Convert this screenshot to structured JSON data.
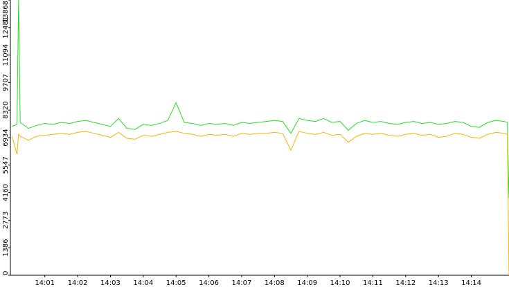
{
  "chart_data": {
    "type": "line",
    "x": [
      0,
      0.15,
      0.2,
      0.25,
      0.5,
      0.75,
      1,
      1.25,
      1.5,
      1.75,
      2,
      2.25,
      2.5,
      2.75,
      3,
      3.25,
      3.5,
      3.75,
      4,
      4.25,
      4.5,
      4.75,
      5,
      5.25,
      5.5,
      5.75,
      6,
      6.25,
      6.5,
      6.75,
      7,
      7.25,
      7.5,
      7.75,
      8,
      8.25,
      8.5,
      8.75,
      9,
      9.25,
      9.5,
      9.75,
      10,
      10.25,
      10.5,
      10.75,
      11,
      11.25,
      11.5,
      11.75,
      12,
      12.25,
      12.5,
      12.75,
      13,
      13.25,
      13.5,
      13.75,
      14,
      14.25,
      14.5,
      14.75,
      15,
      15.1,
      15.15
    ],
    "series": [
      {
        "color": "#22dd22",
        "values": [
          7500,
          7600,
          13868,
          7700,
          7400,
          7550,
          7650,
          7600,
          7700,
          7650,
          7750,
          7800,
          7700,
          7600,
          7500,
          7900,
          7400,
          7350,
          7600,
          7550,
          7650,
          7800,
          8700,
          7700,
          7650,
          7550,
          7650,
          7600,
          7650,
          7550,
          7700,
          7650,
          7700,
          7750,
          7800,
          7750,
          7150,
          7900,
          7800,
          7750,
          7900,
          7700,
          7750,
          7300,
          7650,
          7800,
          7700,
          7750,
          7650,
          7600,
          7700,
          7750,
          7650,
          7700,
          7600,
          7650,
          7750,
          7700,
          7500,
          7450,
          7700,
          7800,
          7750,
          7700,
          3900
        ]
      },
      {
        "color": "#f0b400",
        "values": [
          7000,
          6100,
          7100,
          7000,
          6800,
          7000,
          7050,
          7100,
          7150,
          7100,
          7200,
          7250,
          7150,
          7050,
          6950,
          7200,
          6900,
          6850,
          7050,
          7000,
          7100,
          7200,
          7250,
          7150,
          7100,
          7000,
          7100,
          7050,
          7100,
          7000,
          7150,
          7100,
          7150,
          7150,
          7200,
          7150,
          6300,
          7250,
          7150,
          7100,
          7200,
          7050,
          7100,
          6700,
          7000,
          7150,
          7100,
          7150,
          7050,
          7000,
          7100,
          7150,
          7050,
          7100,
          6950,
          7000,
          7150,
          7100,
          6950,
          6900,
          7100,
          7200,
          7150,
          7100,
          0
        ]
      }
    ],
    "xlim": [
      -0.05,
      15.15
    ],
    "xticks": [
      {
        "value": 1,
        "label": "14:01"
      },
      {
        "value": 2,
        "label": "14:02"
      },
      {
        "value": 3,
        "label": "14:03"
      },
      {
        "value": 4,
        "label": "14:04"
      },
      {
        "value": 5,
        "label": "14:05"
      },
      {
        "value": 6,
        "label": "14:06"
      },
      {
        "value": 7,
        "label": "14:07"
      },
      {
        "value": 8,
        "label": "14:08"
      },
      {
        "value": 9,
        "label": "14:09"
      },
      {
        "value": 10,
        "label": "14:10"
      },
      {
        "value": 11,
        "label": "14:11"
      },
      {
        "value": 12,
        "label": "14:12"
      },
      {
        "value": 13,
        "label": "14:13"
      },
      {
        "value": 14,
        "label": "14:14"
      }
    ],
    "ylim": [
      0,
      13868
    ],
    "yticks": [
      0,
      1386,
      2773,
      4160,
      5547,
      6934,
      8320,
      9707,
      11094,
      12481,
      13868
    ]
  }
}
